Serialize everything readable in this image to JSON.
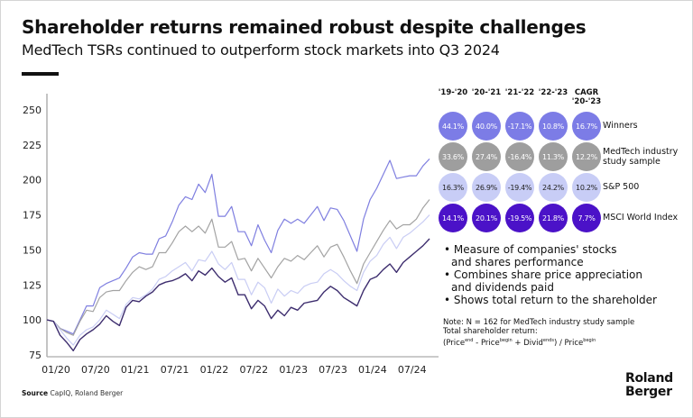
{
  "header": {
    "title": "Shareholder returns remained robust despite challenges",
    "subtitle": "MedTech TSRs continued to outperform stock markets into Q3 2024"
  },
  "chart_data": {
    "type": "line",
    "title": "Shareholder returns remained robust despite challenges",
    "xlabel": "",
    "ylabel": "",
    "ylim": [
      75,
      260
    ],
    "yticks": [
      75,
      100,
      125,
      150,
      175,
      200,
      225,
      250
    ],
    "xticks": [
      "01/20",
      "07/20",
      "01/21",
      "07/21",
      "01/22",
      "07/22",
      "01/23",
      "07/23",
      "01/24",
      "07/24"
    ],
    "x_start": "01/20",
    "x_step": "month",
    "grid": false,
    "legend": "right (bubble table)",
    "series": [
      {
        "name": "Winners",
        "color": "#7f7fe0",
        "values": [
          100,
          99,
          94,
          92,
          90,
          100,
          110,
          110,
          123,
          126,
          128,
          130,
          137,
          145,
          148,
          147,
          147,
          158,
          160,
          170,
          182,
          188,
          186,
          197,
          191,
          204,
          174,
          174,
          181,
          163,
          163,
          153,
          168,
          157,
          148,
          164,
          172,
          169,
          172,
          169,
          175,
          181,
          171,
          180,
          179,
          171,
          160,
          149,
          172,
          186,
          194,
          204,
          214,
          201,
          202,
          203,
          203,
          210,
          215
        ]
      },
      {
        "name": "MedTech industry study sample",
        "color": "#a3a3a3",
        "values": [
          100,
          99,
          94,
          91,
          89,
          99,
          107,
          106,
          116,
          120,
          121,
          121,
          128,
          134,
          138,
          136,
          138,
          148,
          148,
          155,
          163,
          167,
          163,
          167,
          162,
          172,
          152,
          152,
          156,
          143,
          144,
          135,
          144,
          137,
          130,
          138,
          144,
          142,
          146,
          143,
          148,
          153,
          145,
          152,
          154,
          145,
          135,
          126,
          140,
          148,
          156,
          164,
          171,
          165,
          168,
          168,
          172,
          180,
          186
        ]
      },
      {
        "name": "S&P 500",
        "color": "#c9cdf4",
        "values": [
          100,
          99,
          93,
          87,
          82,
          89,
          93,
          95,
          100,
          107,
          104,
          101,
          111,
          116,
          115,
          118,
          122,
          129,
          131,
          135,
          138,
          141,
          135,
          143,
          142,
          149,
          140,
          136,
          141,
          129,
          129,
          118,
          127,
          123,
          112,
          122,
          117,
          121,
          119,
          124,
          126,
          127,
          133,
          136,
          133,
          128,
          124,
          121,
          134,
          142,
          146,
          154,
          159,
          151,
          159,
          162,
          166,
          170,
          175
        ]
      },
      {
        "name": "MSCI World Index",
        "color": "#3d2d6e",
        "values": [
          100,
          99,
          89,
          84,
          78,
          86,
          90,
          93,
          97,
          103,
          99,
          96,
          109,
          114,
          113,
          117,
          120,
          125,
          127,
          128,
          130,
          133,
          128,
          135,
          132,
          137,
          131,
          127,
          130,
          118,
          118,
          108,
          114,
          110,
          101,
          107,
          103,
          109,
          107,
          112,
          113,
          114,
          120,
          124,
          121,
          116,
          113,
          110,
          121,
          129,
          131,
          136,
          140,
          134,
          141,
          145,
          149,
          153,
          158
        ]
      }
    ],
    "table": {
      "columns": [
        "'19-'20",
        "'20-'21",
        "'21-'22",
        "'22-'23",
        "CAGR '20-'23"
      ],
      "rows": [
        {
          "name": "Winners",
          "values": [
            "44.1%",
            "40.0%",
            "-17.1%",
            "10.8%",
            "16.7%"
          ],
          "color": "#7c7ce6",
          "text_color": "#ffffff"
        },
        {
          "name": "MedTech industry study sample",
          "values": [
            "33.6%",
            "27.4%",
            "-16.4%",
            "11.3%",
            "12.2%"
          ],
          "color": "#9e9e9e",
          "text_color": "#ffffff"
        },
        {
          "name": "S&P 500",
          "values": [
            "16.3%",
            "26.9%",
            "-19.4%",
            "24.2%",
            "10.2%"
          ],
          "color": "#c8cdf6",
          "text_color": "#222222"
        },
        {
          "name": "MSCI World Index",
          "values": [
            "14.1%",
            "20.1%",
            "-19.5%",
            "21.8%",
            "7.7%"
          ],
          "color": "#4b12c8",
          "text_color": "#ffffff"
        }
      ]
    }
  },
  "table_headers": [
    {
      "l1": "'19-'20",
      "l2": ""
    },
    {
      "l1": "'20-'21",
      "l2": ""
    },
    {
      "l1": "'21-'22",
      "l2": ""
    },
    {
      "l1": "'22-'23",
      "l2": ""
    },
    {
      "l1": "CAGR",
      "l2": "'20-'23"
    }
  ],
  "row_labels": [
    {
      "l1": "Winners",
      "l2": ""
    },
    {
      "l1": "MedTech industry",
      "l2": "study sample"
    },
    {
      "l1": "S&P 500",
      "l2": ""
    },
    {
      "l1": "MSCI World Index",
      "l2": ""
    }
  ],
  "bullets": [
    {
      "l1": "Measure of companies' stocks",
      "l2": "and shares performance"
    },
    {
      "l1": "Combines share price appreciation",
      "l2": "and dividends paid"
    },
    {
      "l1": "Shows total return to the shareholder",
      "l2": ""
    }
  ],
  "note": {
    "line1": "Note: N = 162 for MedTech industry study sample",
    "line2": "Total shareholder return:",
    "formula_open": "(Price",
    "sup_end": "end",
    "minus": " - Price",
    "sup_begin1": "begin",
    "plus": " + Divid",
    "sup_ends": "ends",
    "close": ") / Price",
    "sup_begin2": "begin"
  },
  "footer": {
    "source_label": "Source",
    "source_text": " CapIQ, Roland Berger",
    "logo_line1": "Roland",
    "logo_line2": "Berger"
  }
}
